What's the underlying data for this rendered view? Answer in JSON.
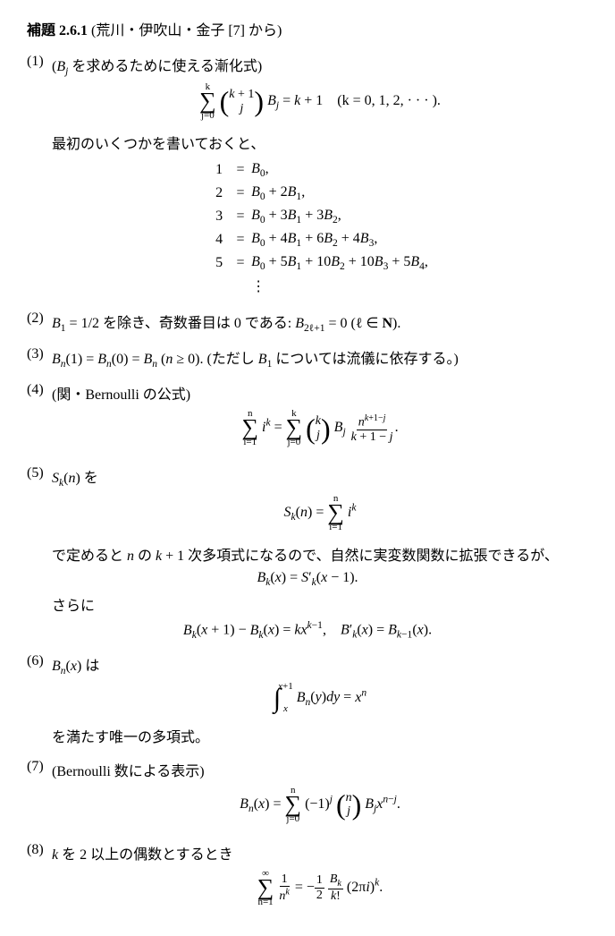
{
  "header": {
    "lemma_label": "補題 2.6.1",
    "source": "(荒川・伊吹山・金子 [7] から)"
  },
  "items": {
    "n1": "(1)",
    "n2": "(2)",
    "n3": "(3)",
    "n4": "(4)",
    "n5": "(5)",
    "n6": "(6)",
    "n7": "(7)",
    "n8": "(8)"
  },
  "text": {
    "i1_title": "(Bⱼ を求めるために使える漸化式)",
    "i1_note": "最初のいくつかを書いておくと、",
    "i2": "B₁ = 1/2 を除き、奇数番目は 0 である: B₂ₗ₊₁ = 0 (ℓ ∈ N).",
    "i3": "Bₙ(1) = Bₙ(0) = Bₙ (n ≥ 0). (ただし B₁ については流儀に依存する。)",
    "i4_title": "(関・Bernoulli の公式)",
    "i5_a": "Sₖ(n) を",
    "i5_b": "で定めると n の k + 1 次多項式になるので、自然に実変数関数に拡張できるが、",
    "i5_c": "さらに",
    "i6_a": "Bₙ(x) は",
    "i6_b": "を満たす唯一の多項式。",
    "i7_title": "(Bernoulli 数による表示)",
    "i8_a": "k を 2 以上の偶数とするとき"
  },
  "eq": {
    "f1_cond": "(k = 0, 1, 2, · · · ).",
    "f1_rhs": "Bⱼ = k + 1",
    "tab": {
      "r1l": "1",
      "r1r": "B₀,",
      "r2l": "2",
      "r2r": "B₀ + 2B₁,",
      "r3l": "3",
      "r3r": "B₀ + 3B₁ + 3B₂,",
      "r4l": "4",
      "r4r": "B₀ + 4B₁ + 6B₂ + 4B₃,",
      "r5l": "5",
      "r5r": "B₀ + 5B₁ + 10B₂ + 10B₃ + 5B₄,",
      "eq": "="
    },
    "vdots": "⋮",
    "f5a": "Sₖ(n) =",
    "f5a_term": "iᵏ",
    "f5b": "Bₖ(x) = S′ₖ(x − 1).",
    "f5c": "Bₖ(x + 1) − Bₖ(x) = kxᵏ⁻¹,    B′ₖ(x) = Bₖ₋₁(x).",
    "f6": "Bₙ(y)dy = xⁿ",
    "f7_lhs": "Bₙ(x) =",
    "f7_mid": "(−1)ʲ",
    "f7_rhs": "Bⱼxⁿ⁻ʲ.",
    "f8_rhs": "(2πi)ᵏ.",
    "sum_top_k": "k",
    "sum_top_n": "n",
    "sum_top_inf": "∞",
    "sum_bot_j0": "j=0",
    "sum_bot_i1": "i=1",
    "sum_bot_n1": "n=1",
    "bin_k1": "k + 1",
    "bin_j": "j",
    "bin_k": "k",
    "bin_n": "n",
    "frac_nk1j": "nᵏ⁺¹⁻ʲ",
    "frac_k1j": "k + 1 − j",
    "frac_1": "1",
    "frac_nk": "nᵏ",
    "frac_Bk": "Bₖ",
    "frac_kf": "k!",
    "half_n": "1",
    "half_d": "2",
    "neg": "= −",
    "int_up": "x+1",
    "int_lo": "x",
    "f4_lhs": "iᵏ ="
  }
}
